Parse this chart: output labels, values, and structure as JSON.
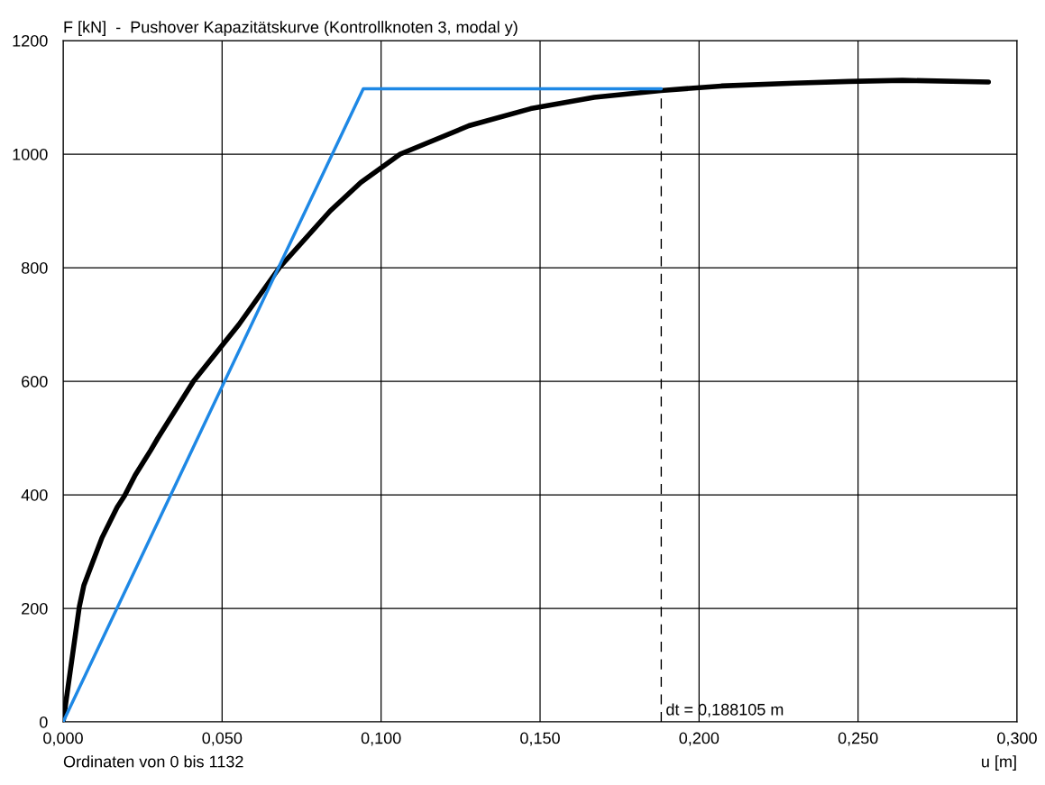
{
  "chart_data": {
    "type": "line",
    "ylabel": "F [kN]  -  Pushover Kapazitätskurve (Kontrollknoten 3, modal y)",
    "xlabel": "u [m]",
    "annotations": [
      "Ordinaten von 0 bis 1132"
    ],
    "series": [
      {
        "color": "#000000",
        "x": [
          0,
          0.0051,
          0.0065,
          0.0094,
          0.0122,
          0.017,
          0.0193,
          0.0227,
          0.0275,
          0.0298,
          0.0354,
          0.041,
          0.0553,
          0.068,
          0.084,
          0.0936,
          0.106,
          0.1276,
          0.147,
          0.167,
          0.188,
          0.207,
          0.23,
          0.247,
          0.264,
          0.291
        ],
        "values": [
          0,
          203,
          240,
          283,
          324,
          378,
          398,
          435,
          478,
          500,
          550,
          600,
          700,
          800,
          900,
          950,
          1000,
          1050,
          1080,
          1100,
          1112,
          1120,
          1125,
          1128,
          1130,
          1127
        ]
      },
      {
        "color": "#1e88e5",
        "x": [
          0,
          0.0944,
          0.188105
        ],
        "values": [
          0,
          1115,
          1115
        ]
      }
    ],
    "ref_lines": [
      {
        "axis": "x",
        "value": 0.188105,
        "label": "dt = 0,188105 m",
        "color": "#000000",
        "line_style": "dashed"
      }
    ],
    "xlim": [
      0,
      0.3
    ],
    "ylim": [
      0,
      1200
    ],
    "xticks": [
      {
        "value": 0,
        "label": "0,000"
      },
      {
        "value": 0.05,
        "label": "0,050"
      },
      {
        "value": 0.1,
        "label": "0,100"
      },
      {
        "value": 0.15,
        "label": "0,150"
      },
      {
        "value": 0.2,
        "label": "0,200"
      },
      {
        "value": 0.25,
        "label": "0,250"
      },
      {
        "value": 0.3,
        "label": "0,300"
      }
    ],
    "yticks": [
      0,
      200,
      400,
      600,
      800,
      1000,
      1200
    ],
    "grid": true
  }
}
